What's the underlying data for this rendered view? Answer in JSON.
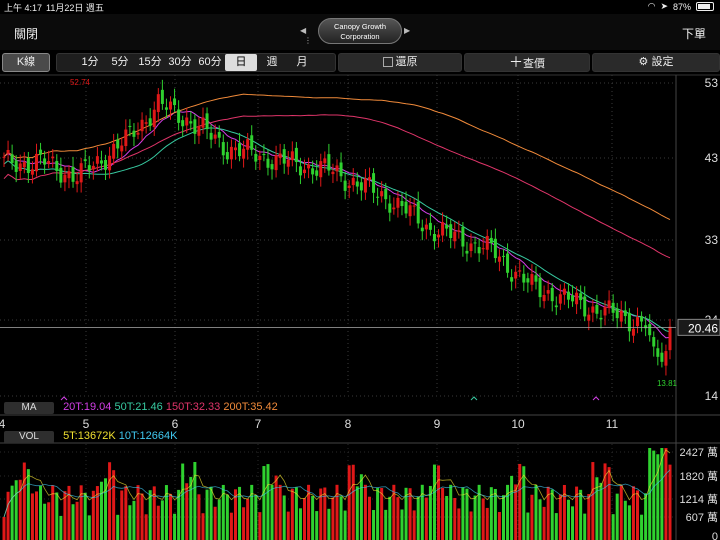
{
  "status": {
    "time": "上午 4:17",
    "date": "11月22日 週五",
    "battery": "87%"
  },
  "nav": {
    "close": "關閉",
    "order": "下單",
    "stock_line1": "Canopy Growth",
    "stock_line2": "Corporation"
  },
  "toolbar": {
    "kline": "K線",
    "periods": [
      "1分",
      "5分",
      "15分",
      "30分",
      "60分",
      "日",
      "週",
      "月"
    ],
    "selected": "日",
    "restore": "還原",
    "query": "查價",
    "settings": "設定"
  },
  "price_axis": [
    "53",
    "43",
    "33",
    "24",
    "14"
  ],
  "current_price": "20.46",
  "high_label": "52.74",
  "low_label": "13.81",
  "x_months": [
    "4",
    "5",
    "6",
    "7",
    "8",
    "9",
    "10",
    "11"
  ],
  "ma_legend": {
    "tag": "MA",
    "items": [
      {
        "text": "20T:19.04",
        "color": "#d23fe6"
      },
      {
        "text": "50T:21.46",
        "color": "#37c9a0"
      },
      {
        "text": "150T:32.33",
        "color": "#e0356a"
      },
      {
        "text": "200T:35.42",
        "color": "#f08a3a"
      }
    ]
  },
  "vol_legend": {
    "tag": "VOL",
    "items": [
      {
        "text": "5T:13672K",
        "color": "#f0e030"
      },
      {
        "text": "10T:12664K",
        "color": "#40c8f0"
      }
    ]
  },
  "vol_axis": [
    "2427 萬",
    "1820 萬",
    "1214 萬",
    "607 萬",
    "0"
  ],
  "colors": {
    "up": "#e01818",
    "down": "#2fd12f",
    "bg": "#000000"
  }
}
